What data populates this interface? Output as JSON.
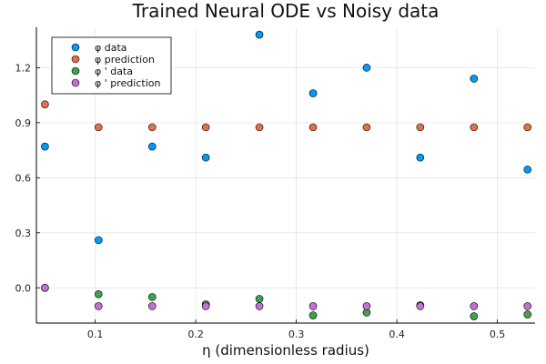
{
  "chart_data": {
    "type": "scatter",
    "title": "Trained Neural ODE vs Noisy data",
    "xlabel": "η (dimensionless radius)",
    "ylabel": "",
    "xlim": [
      0.0415,
      0.5375
    ],
    "ylim": [
      -0.192,
      1.42
    ],
    "xticks": [
      0.1,
      0.2,
      0.3,
      0.4,
      0.5
    ],
    "xtick_labels": [
      "0.1",
      "0.2",
      "0.3",
      "0.4",
      "0.5"
    ],
    "yticks": [
      0.0,
      0.3,
      0.6,
      0.9,
      1.2
    ],
    "ytick_labels": [
      "0.0",
      "0.3",
      "0.6",
      "0.9",
      "1.2"
    ],
    "grid": true,
    "legend_position": "top-left",
    "series": [
      {
        "name": "φ data",
        "color": "#009af9",
        "x": [
          0.05,
          0.1033,
          0.1567,
          0.21,
          0.2633,
          0.3167,
          0.37,
          0.4233,
          0.4767,
          0.53
        ],
        "y": [
          0.77,
          0.26,
          0.77,
          0.71,
          1.38,
          1.06,
          1.2,
          0.71,
          1.14,
          0.645
        ]
      },
      {
        "name": "φ prediction",
        "color": "#e26f46",
        "x": [
          0.05,
          0.1033,
          0.1567,
          0.21,
          0.2633,
          0.3167,
          0.37,
          0.4233,
          0.4767,
          0.53
        ],
        "y": [
          1.0,
          0.875,
          0.875,
          0.875,
          0.875,
          0.875,
          0.875,
          0.875,
          0.875,
          0.875
        ]
      },
      {
        "name": "φ ' data",
        "color": "#3da44d",
        "x": [
          0.05,
          0.1033,
          0.1567,
          0.21,
          0.2633,
          0.3167,
          0.37,
          0.4233,
          0.4767,
          0.53
        ],
        "y": [
          0.0,
          -0.035,
          -0.05,
          -0.09,
          -0.06,
          -0.15,
          -0.135,
          -0.095,
          -0.155,
          -0.145
        ]
      },
      {
        "name": "φ ' prediction",
        "color": "#c271d2",
        "x": [
          0.05,
          0.1033,
          0.1567,
          0.21,
          0.2633,
          0.3167,
          0.37,
          0.4233,
          0.4767,
          0.53
        ],
        "y": [
          0.0,
          -0.1,
          -0.1,
          -0.1,
          -0.1,
          -0.1,
          -0.1,
          -0.1,
          -0.1,
          -0.1
        ]
      }
    ]
  }
}
